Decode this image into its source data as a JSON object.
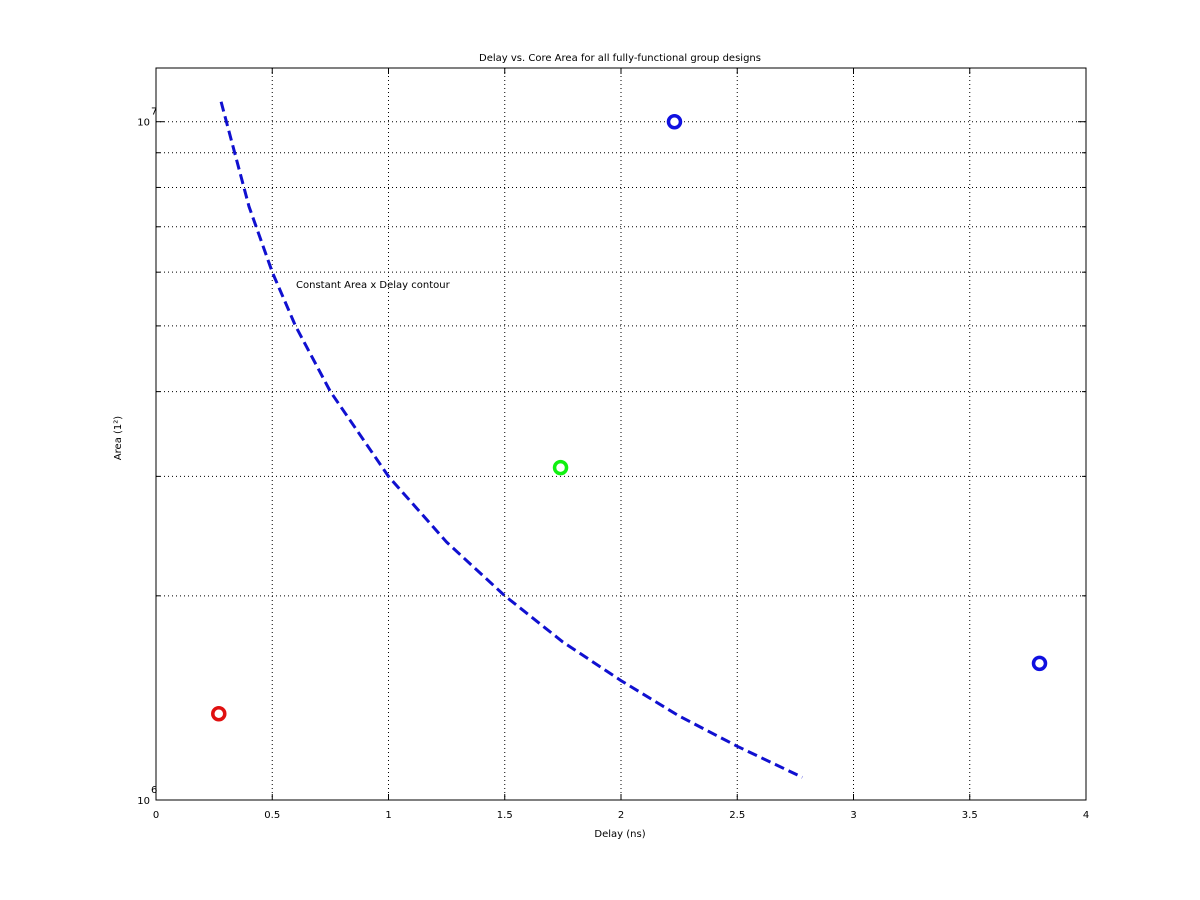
{
  "chart_data": {
    "type": "scatter",
    "title": "Delay vs. Core Area for all fully-functional group designs",
    "xlabel": "Delay (ns)",
    "ylabel": "Area (1²)",
    "annotation": "Constant Area x Delay contour",
    "xlim": [
      0,
      4
    ],
    "xticks": [
      0,
      0.5,
      1,
      1.5,
      2,
      2.5,
      3,
      3.5,
      4
    ],
    "ylim": [
      1000000,
      12000000
    ],
    "yscale": "log",
    "yticks": [
      {
        "value": 1000000,
        "label": "10",
        "exponent": "6"
      },
      {
        "value": 10000000,
        "label": "10",
        "exponent": "7"
      }
    ],
    "yminorticks": [
      2000000,
      3000000,
      4000000,
      5000000,
      6000000,
      7000000,
      8000000,
      9000000
    ],
    "grid": true,
    "points": {
      "x": [
        0.27,
        1.74,
        2.23,
        3.8
      ],
      "y": [
        1340000,
        3090000,
        10000000,
        1590000
      ],
      "colors": [
        "#e01010",
        "#10f010",
        "#1010e0",
        "#1010e0"
      ]
    },
    "contour": {
      "color": "#1010d0",
      "x": [
        0.28,
        0.4,
        0.5,
        0.6,
        0.75,
        1,
        1.25,
        1.5,
        1.75,
        2,
        2.25,
        2.5,
        2.78
      ],
      "y": [
        10700000,
        7500000,
        6000000,
        5000000,
        4000000,
        3000000,
        2400000,
        2000000,
        1710000,
        1500000,
        1330000,
        1200000,
        1080000
      ]
    }
  }
}
